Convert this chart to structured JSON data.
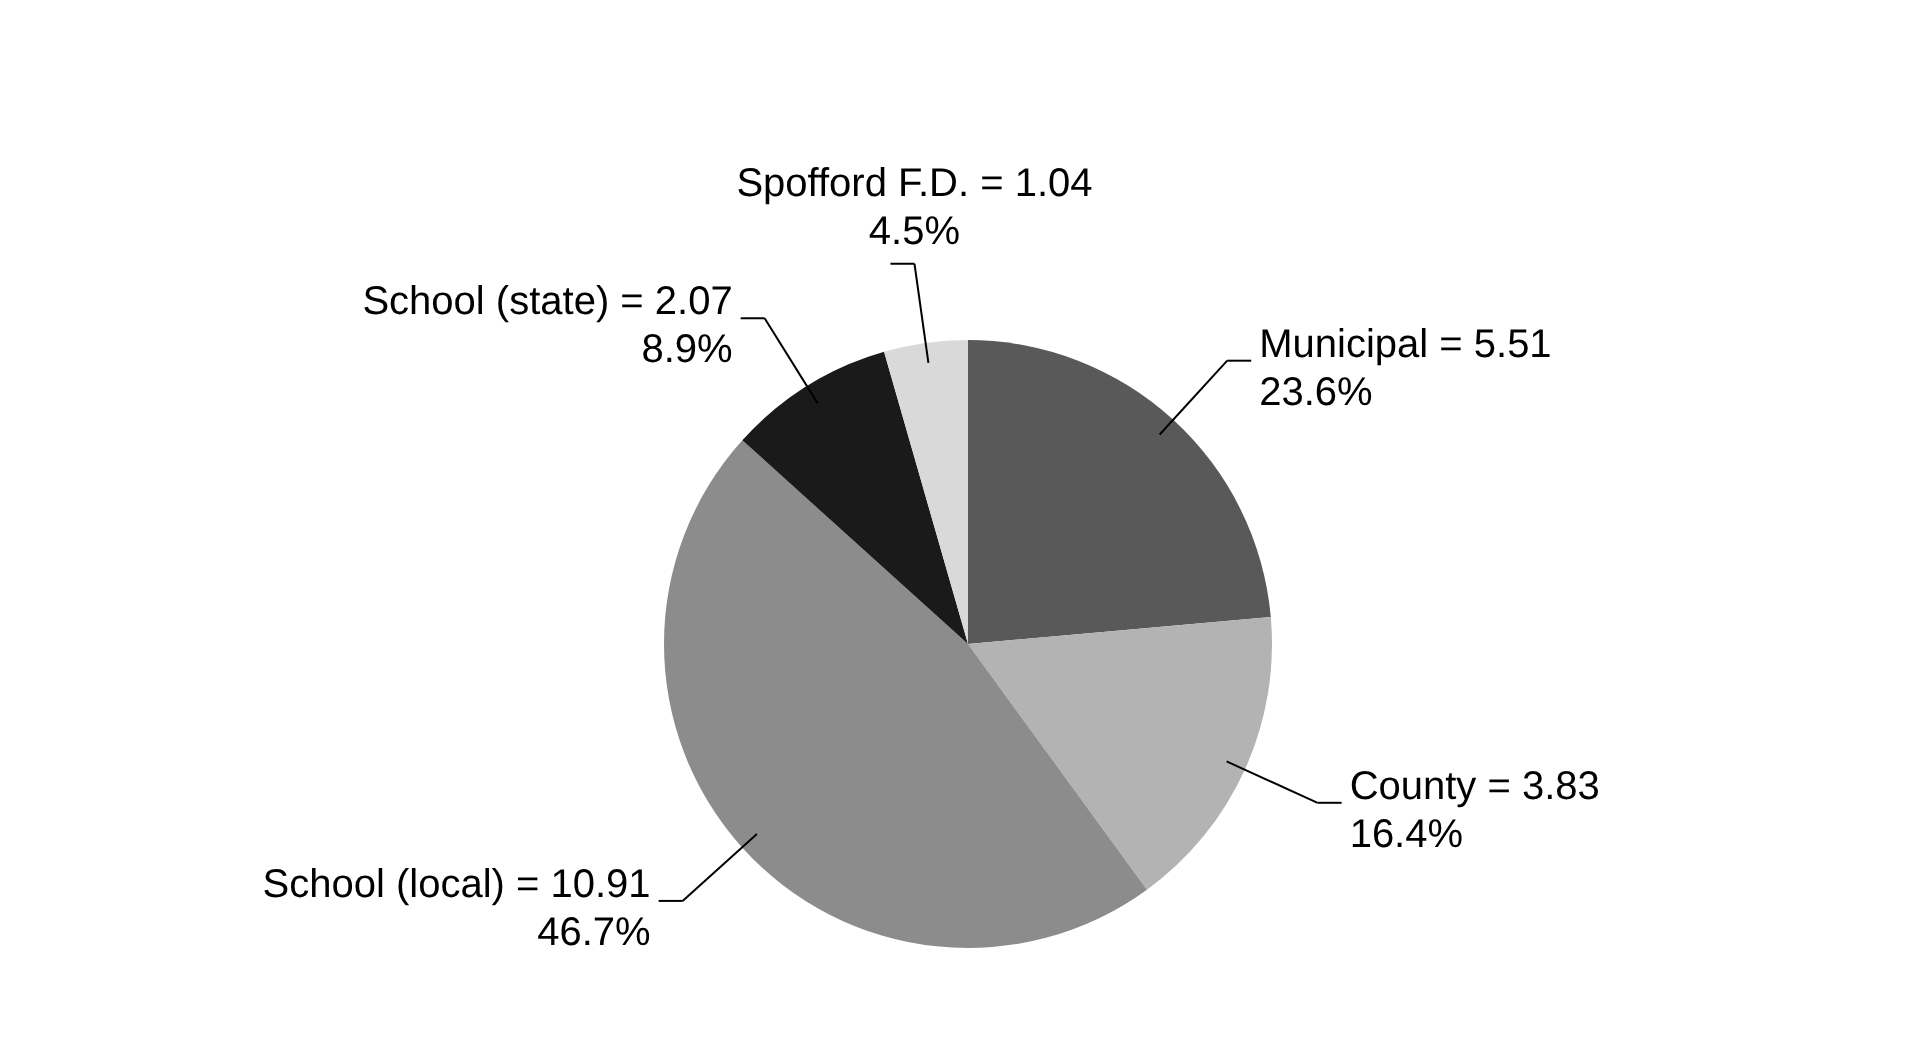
{
  "chart_data": {
    "type": "pie",
    "categories": [
      "Municipal",
      "County",
      "School (local)",
      "School (state)",
      "Spofford F.D."
    ],
    "values": [
      5.51,
      3.83,
      10.91,
      2.07,
      1.04
    ],
    "value_labels": [
      "= 5.51\n23.6%",
      "= 3.83\n16.4%",
      "= 10.91\n46.7%",
      "= 2.07\n8.9%",
      "= 1.04\n4.5%"
    ],
    "colors": [
      "#595959",
      "#b3b3b3",
      "#8c8c8c",
      "#1a1a1a",
      "#d9d9d9"
    ]
  }
}
